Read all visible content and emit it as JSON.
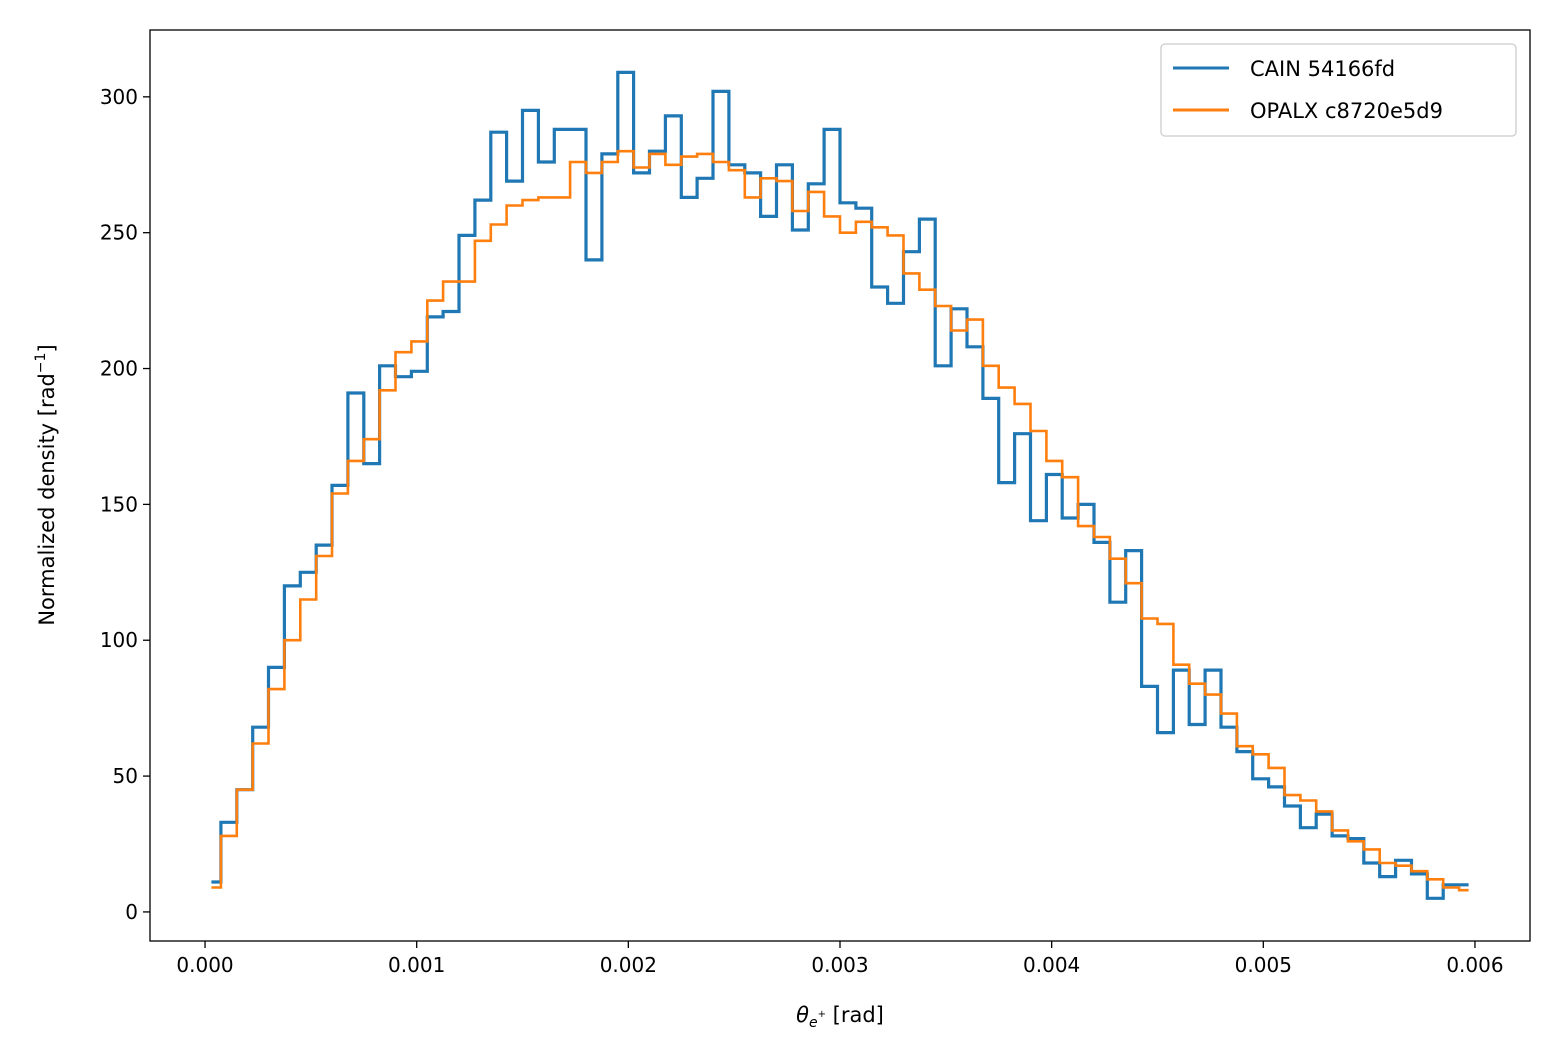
{
  "chart_data": {
    "type": "line",
    "style": "step histogram",
    "title": "",
    "xlabel": {
      "symbol": "θ",
      "subscript": "e",
      "superscript": "+",
      "unit": " [rad]"
    },
    "ylabel": {
      "text": "Normalized density [rad",
      "exp": "−1",
      "close": "]"
    },
    "xlim": [
      -0.00026,
      0.00626
    ],
    "ylim": [
      -10.7,
      324.6
    ],
    "xticks": [
      0,
      0.001,
      0.002,
      0.003,
      0.004,
      0.005,
      0.006
    ],
    "xtick_labels": [
      "0.000",
      "0.001",
      "0.002",
      "0.003",
      "0.004",
      "0.005",
      "0.006"
    ],
    "yticks": [
      0,
      50,
      100,
      150,
      200,
      250,
      300
    ],
    "ytick_labels": [
      "0",
      "50",
      "100",
      "150",
      "200",
      "250",
      "300"
    ],
    "grid": false,
    "legend_position": "top-right",
    "bin_range": [
      0,
      0.006
    ],
    "bin_count": 80,
    "series": [
      {
        "name": "CAIN 54166fd",
        "color": "#1f77b4",
        "values": [
          11,
          33,
          45,
          68,
          90,
          120,
          125,
          135,
          157,
          191,
          165,
          201,
          197,
          199,
          219,
          221,
          249,
          262,
          287,
          269,
          295,
          276,
          288,
          288,
          240,
          279,
          309,
          272,
          280,
          293,
          263,
          270,
          302,
          275,
          272,
          256,
          275,
          251,
          268,
          288,
          261,
          259,
          230,
          224,
          243,
          255,
          201,
          222,
          208,
          189,
          158,
          176,
          144,
          161,
          145,
          150,
          136,
          114,
          133,
          83,
          66,
          89,
          69,
          89,
          68,
          59,
          49,
          46,
          39,
          31,
          36,
          28,
          27,
          18,
          13,
          19,
          14,
          5,
          10,
          10
        ]
      },
      {
        "name": "OPALX c8720e5d9",
        "color": "#ff7f0e",
        "values": [
          9,
          28,
          45,
          62,
          82,
          100,
          115,
          131,
          154,
          166,
          174,
          192,
          206,
          210,
          225,
          232,
          232,
          247,
          253,
          260,
          262,
          263,
          263,
          276,
          272,
          276,
          280,
          274,
          279,
          275,
          278,
          279,
          276,
          273,
          263,
          270,
          269,
          258,
          265,
          256,
          250,
          254,
          252,
          249,
          235,
          229,
          223,
          214,
          218,
          201,
          193,
          187,
          177,
          166,
          160,
          142,
          138,
          130,
          121,
          108,
          106,
          91,
          84,
          80,
          73,
          61,
          58,
          53,
          43,
          41,
          37,
          30,
          26,
          23,
          18,
          17,
          15,
          12,
          9,
          8
        ]
      }
    ]
  }
}
